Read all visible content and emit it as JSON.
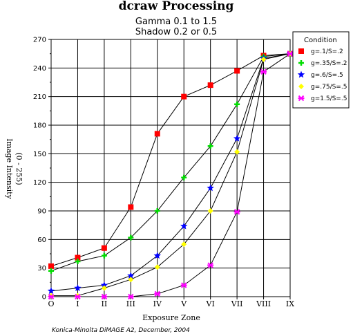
{
  "chart_data": {
    "type": "line",
    "title": "dcraw Processing",
    "subtitle_lines": [
      "Gamma 0.1 to 1.5",
      "Shadow 0.2 or 0.5"
    ],
    "xlabel": "Exposure Zone",
    "ylabel_lines": [
      "Image Intensity",
      "(0 - 255)"
    ],
    "categories": [
      "O",
      "I",
      "II",
      "III",
      "IV",
      "V",
      "VI",
      "VII",
      "VIII",
      "IX"
    ],
    "ylim": [
      0,
      270
    ],
    "yticks": [
      0,
      30,
      60,
      90,
      120,
      150,
      180,
      210,
      240,
      270
    ],
    "grid": true,
    "legend_title": "Condition",
    "legend_position": "top-right",
    "series": [
      {
        "name": "g=.1/S=.2",
        "color": "#ff0000",
        "marker": "square",
        "values": [
          32,
          41,
          51,
          94,
          171,
          210,
          222,
          237,
          253,
          255
        ]
      },
      {
        "name": "g=.35/S=.2",
        "color": "#00dd00",
        "marker": "cross",
        "values": [
          27,
          37,
          43,
          62,
          90,
          125,
          158,
          202,
          252,
          255
        ]
      },
      {
        "name": "g=.6/S=.5",
        "color": "#0000ff",
        "marker": "star",
        "values": [
          6,
          9,
          12,
          22,
          43,
          74,
          114,
          166,
          250,
          255
        ]
      },
      {
        "name": "g=.75/S=.5",
        "color": "#ffff00",
        "marker": "diamond",
        "values": [
          1,
          1,
          9,
          18,
          31,
          55,
          90,
          152,
          249,
          255
        ]
      },
      {
        "name": "g=1.5/S=.5",
        "color": "#ff00ff",
        "marker": "x",
        "values": [
          0,
          0,
          0,
          0,
          3,
          12,
          33,
          89,
          236,
          255
        ]
      }
    ],
    "footer": "Konica-Minolta DiMAGE A2, December, 2004"
  }
}
